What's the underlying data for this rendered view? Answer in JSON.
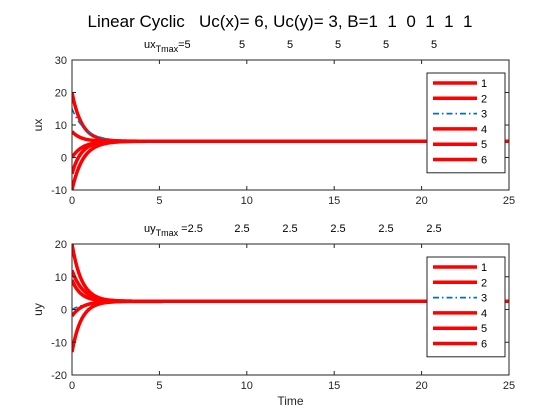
{
  "figure_title": "Linear Cyclic   Uc(x)= 6, Uc(y)= 3, B=1  1  0  1  1  1",
  "chart_data": [
    {
      "type": "line",
      "ylabel": "ux",
      "xlabel": "",
      "xlim": [
        0,
        25
      ],
      "ylim": [
        -10,
        30
      ],
      "xticks": [
        0,
        5,
        10,
        15,
        20,
        25
      ],
      "yticks": [
        -10,
        0,
        10,
        20,
        30
      ],
      "grid": false,
      "legend_position": "top-right",
      "annotation_prefix": "ux",
      "annotation_subscript": "Tmax",
      "annotation_eq": "=",
      "annotation_values": [
        "5",
        "5",
        "5",
        "5",
        "5",
        "5"
      ],
      "converge_value": 5,
      "series": [
        {
          "name": "1",
          "color": "#ff0000",
          "style": "solid",
          "start": 20,
          "decay": 1.8
        },
        {
          "name": "2",
          "color": "#ff0000",
          "style": "solid",
          "start": -10,
          "decay": 1.6
        },
        {
          "name": "3",
          "color": "#0072bd",
          "style": "dashdot",
          "start": 15,
          "decay": 1.3
        },
        {
          "name": "4",
          "color": "#ff0000",
          "style": "solid",
          "start": 8,
          "decay": 2.0
        },
        {
          "name": "5",
          "color": "#ff0000",
          "style": "solid",
          "start": 0,
          "decay": 1.7
        },
        {
          "name": "6",
          "color": "#ff0000",
          "style": "solid",
          "start": -5,
          "decay": 1.9
        }
      ]
    },
    {
      "type": "line",
      "ylabel": "uy",
      "xlabel": "Time",
      "xlim": [
        0,
        25
      ],
      "ylim": [
        -20,
        20
      ],
      "xticks": [
        0,
        5,
        10,
        15,
        20,
        25
      ],
      "yticks": [
        -20,
        -10,
        0,
        10,
        20
      ],
      "grid": false,
      "legend_position": "top-right",
      "annotation_prefix": "uy",
      "annotation_subscript": "Tmax",
      "annotation_eq": " =",
      "annotation_values": [
        "2.5",
        "2.5",
        "2.5",
        "2.5",
        "2.5",
        "2.5"
      ],
      "converge_value": 2.5,
      "series": [
        {
          "name": "1",
          "color": "#ff0000",
          "style": "solid",
          "start": 20,
          "decay": 1.8
        },
        {
          "name": "2",
          "color": "#ff0000",
          "style": "solid",
          "start": 12,
          "decay": 1.6
        },
        {
          "name": "3",
          "color": "#0072bd",
          "style": "dashdot",
          "start": 0,
          "decay": 1.2
        },
        {
          "name": "4",
          "color": "#ff0000",
          "style": "solid",
          "start": 9,
          "decay": 2.0
        },
        {
          "name": "5",
          "color": "#ff0000",
          "style": "solid",
          "start": -2,
          "decay": 1.7
        },
        {
          "name": "6",
          "color": "#ff0000",
          "style": "solid",
          "start": -13,
          "decay": 1.9
        }
      ]
    }
  ]
}
